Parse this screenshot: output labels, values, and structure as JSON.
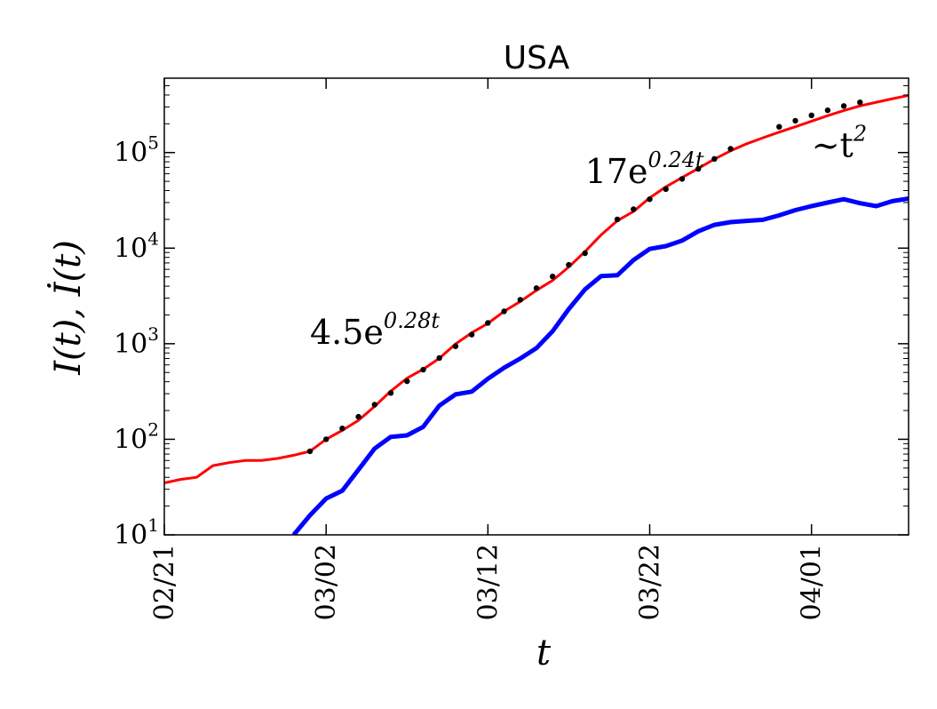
{
  "chart_data": {
    "type": "line",
    "title": "USA",
    "xlabel": "t",
    "ylabel": "I(t), İ(t)",
    "yscale": "log",
    "ylim": [
      10,
      600000
    ],
    "xlim": [
      "2020-02-21",
      "2020-04-07"
    ],
    "x_ticks": [
      {
        "date": "2020-02-21",
        "label": "02/21"
      },
      {
        "date": "2020-03-02",
        "label": "03/02"
      },
      {
        "date": "2020-03-12",
        "label": "03/12"
      },
      {
        "date": "2020-03-22",
        "label": "03/22"
      },
      {
        "date": "2020-04-01",
        "label": "04/01"
      }
    ],
    "y_ticks": [
      {
        "value": 10,
        "base": "10",
        "exp": "1"
      },
      {
        "value": 100,
        "base": "10",
        "exp": "2"
      },
      {
        "value": 1000,
        "base": "10",
        "exp": "3"
      },
      {
        "value": 10000,
        "base": "10",
        "exp": "4"
      },
      {
        "value": 100000,
        "base": "10",
        "exp": "5"
      }
    ],
    "grid": false,
    "series": [
      {
        "color": "#ff0000",
        "width": 3,
        "points": [
          [
            "2020-02-21",
            35
          ],
          [
            "2020-02-22",
            38
          ],
          [
            "2020-02-23",
            40
          ],
          [
            "2020-02-24",
            53
          ],
          [
            "2020-02-25",
            57
          ],
          [
            "2020-02-26",
            60
          ],
          [
            "2020-02-27",
            60
          ],
          [
            "2020-02-28",
            63
          ],
          [
            "2020-02-29",
            68
          ],
          [
            "2020-03-01",
            75
          ],
          [
            "2020-03-02",
            100
          ],
          [
            "2020-03-03",
            124
          ],
          [
            "2020-03-04",
            158
          ],
          [
            "2020-03-05",
            221
          ],
          [
            "2020-03-06",
            319
          ],
          [
            "2020-03-07",
            435
          ],
          [
            "2020-03-08",
            541
          ],
          [
            "2020-03-09",
            704
          ],
          [
            "2020-03-10",
            994
          ],
          [
            "2020-03-11",
            1301
          ],
          [
            "2020-03-12",
            1630
          ],
          [
            "2020-03-13",
            2183
          ],
          [
            "2020-03-14",
            2770
          ],
          [
            "2020-03-15",
            3613
          ],
          [
            "2020-03-16",
            4596
          ],
          [
            "2020-03-17",
            6344
          ],
          [
            "2020-03-18",
            9197
          ],
          [
            "2020-03-19",
            13779
          ],
          [
            "2020-03-20",
            19367
          ],
          [
            "2020-03-21",
            24192
          ],
          [
            "2020-03-22",
            33592
          ],
          [
            "2020-03-23",
            43781
          ],
          [
            "2020-03-24",
            54856
          ],
          [
            "2020-03-25",
            68211
          ],
          [
            "2020-03-26",
            85435
          ],
          [
            "2020-03-27",
            104126
          ],
          [
            "2020-03-28",
            123578
          ],
          [
            "2020-03-29",
            142538
          ],
          [
            "2020-03-30",
            163600
          ],
          [
            "2020-03-31",
            186000
          ],
          [
            "2020-04-01",
            213000
          ],
          [
            "2020-04-02",
            243000
          ],
          [
            "2020-04-03",
            275000
          ],
          [
            "2020-04-04",
            308000
          ],
          [
            "2020-04-05",
            336000
          ],
          [
            "2020-04-06",
            366000
          ],
          [
            "2020-04-07",
            396000
          ]
        ]
      },
      {
        "color": "#0000ff",
        "width": 5,
        "points": [
          [
            "2020-02-29",
            10
          ],
          [
            "2020-03-01",
            16
          ],
          [
            "2020-03-02",
            24
          ],
          [
            "2020-03-03",
            29
          ],
          [
            "2020-03-04",
            48
          ],
          [
            "2020-03-05",
            80
          ],
          [
            "2020-03-06",
            106
          ],
          [
            "2020-03-07",
            110
          ],
          [
            "2020-03-08",
            135
          ],
          [
            "2020-03-09",
            225
          ],
          [
            "2020-03-10",
            295
          ],
          [
            "2020-03-11",
            315
          ],
          [
            "2020-03-12",
            430
          ],
          [
            "2020-03-13",
            560
          ],
          [
            "2020-03-14",
            700
          ],
          [
            "2020-03-15",
            900
          ],
          [
            "2020-03-16",
            1350
          ],
          [
            "2020-03-17",
            2300
          ],
          [
            "2020-03-18",
            3700
          ],
          [
            "2020-03-19",
            5100
          ],
          [
            "2020-03-20",
            5200
          ],
          [
            "2020-03-21",
            7500
          ],
          [
            "2020-03-22",
            9800
          ],
          [
            "2020-03-23",
            10500
          ],
          [
            "2020-03-24",
            12000
          ],
          [
            "2020-03-25",
            15000
          ],
          [
            "2020-03-26",
            17500
          ],
          [
            "2020-03-27",
            18700
          ],
          [
            "2020-03-28",
            19300
          ],
          [
            "2020-03-29",
            19800
          ],
          [
            "2020-03-30",
            22000
          ],
          [
            "2020-03-31",
            25000
          ],
          [
            "2020-04-01",
            27500
          ],
          [
            "2020-04-02",
            30000
          ],
          [
            "2020-04-03",
            32500
          ],
          [
            "2020-04-04",
            29500
          ],
          [
            "2020-04-05",
            27500
          ],
          [
            "2020-04-06",
            31000
          ],
          [
            "2020-04-07",
            33000
          ]
        ]
      }
    ],
    "fit_points": {
      "color": "#000000",
      "points": [
        [
          "2020-03-01",
          75
        ],
        [
          "2020-03-02",
          100
        ],
        [
          "2020-03-03",
          130
        ],
        [
          "2020-03-04",
          172
        ],
        [
          "2020-03-05",
          230
        ],
        [
          "2020-03-06",
          305
        ],
        [
          "2020-03-07",
          405
        ],
        [
          "2020-03-08",
          535
        ],
        [
          "2020-03-09",
          710
        ],
        [
          "2020-03-10",
          940
        ],
        [
          "2020-03-11",
          1245
        ],
        [
          "2020-03-12",
          1650
        ],
        [
          "2020-03-13",
          2180
        ],
        [
          "2020-03-14",
          2885
        ],
        [
          "2020-03-15",
          3815
        ],
        [
          "2020-03-16",
          5050
        ],
        [
          "2020-03-17",
          6680
        ],
        [
          "2020-03-18",
          8840
        ],
        [
          "2020-03-20",
          20000
        ],
        [
          "2020-03-21",
          25500
        ],
        [
          "2020-03-22",
          32500
        ],
        [
          "2020-03-23",
          41500
        ],
        [
          "2020-03-24",
          53000
        ],
        [
          "2020-03-25",
          67500
        ],
        [
          "2020-03-26",
          86000
        ],
        [
          "2020-03-27",
          109500
        ],
        [
          "2020-03-30",
          186000
        ],
        [
          "2020-03-31",
          215000
        ],
        [
          "2020-04-01",
          245000
        ],
        [
          "2020-04-02",
          277000
        ],
        [
          "2020-04-03",
          307000
        ],
        [
          "2020-04-04",
          335000
        ]
      ]
    },
    "annotations": [
      {
        "id": "fit-early",
        "base": "4.5e",
        "exp": "0.28t",
        "anchor": [
          "2020-03-01",
          1000
        ]
      },
      {
        "id": "fit-late",
        "base": "17e",
        "exp": "0.24t",
        "anchor": [
          "2020-03-18",
          48000
        ]
      },
      {
        "id": "power-law",
        "base": "~t",
        "exp": "2",
        "anchor": [
          "2020-04-01",
          90000
        ]
      }
    ]
  }
}
